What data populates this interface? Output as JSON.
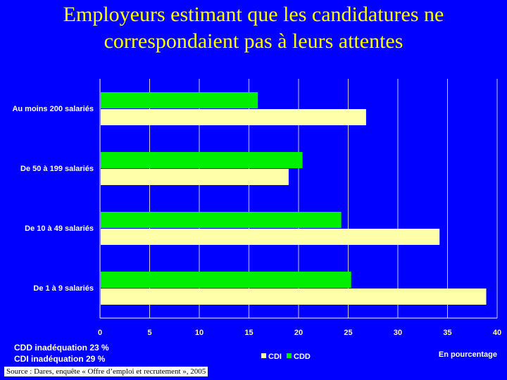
{
  "title": "Employeurs estimant que les candidatures ne correspondaient pas à leurs attentes",
  "notes": [
    "CDD inadéquation 23 %",
    "CDI inadéquation 29 %"
  ],
  "source": "Source : Dares, enquête « Offre d’emploi et recrutement », 2005",
  "colors": {
    "background": "#0000ff",
    "title": "#ffff00",
    "CDI": "#ffffaa",
    "CDD": "#00ee00"
  },
  "chart_data": {
    "type": "bar",
    "orientation": "horizontal",
    "categories": [
      "Au moins 200 salariés",
      "De 50 à 199 salariés",
      "De 10 à 49 salariés",
      "De 1 à 9 salariés"
    ],
    "series": [
      {
        "name": "CDD",
        "values": [
          15.9,
          20.4,
          24.3,
          25.3
        ]
      },
      {
        "name": "CDI",
        "values": [
          26.8,
          19.0,
          34.2,
          38.9
        ]
      }
    ],
    "xlim": [
      0,
      40
    ],
    "xticks": [
      0,
      5,
      10,
      15,
      20,
      25,
      30,
      35,
      40
    ],
    "xlabel": "En pourcentage",
    "grid": true,
    "legend": "bottom-center"
  }
}
